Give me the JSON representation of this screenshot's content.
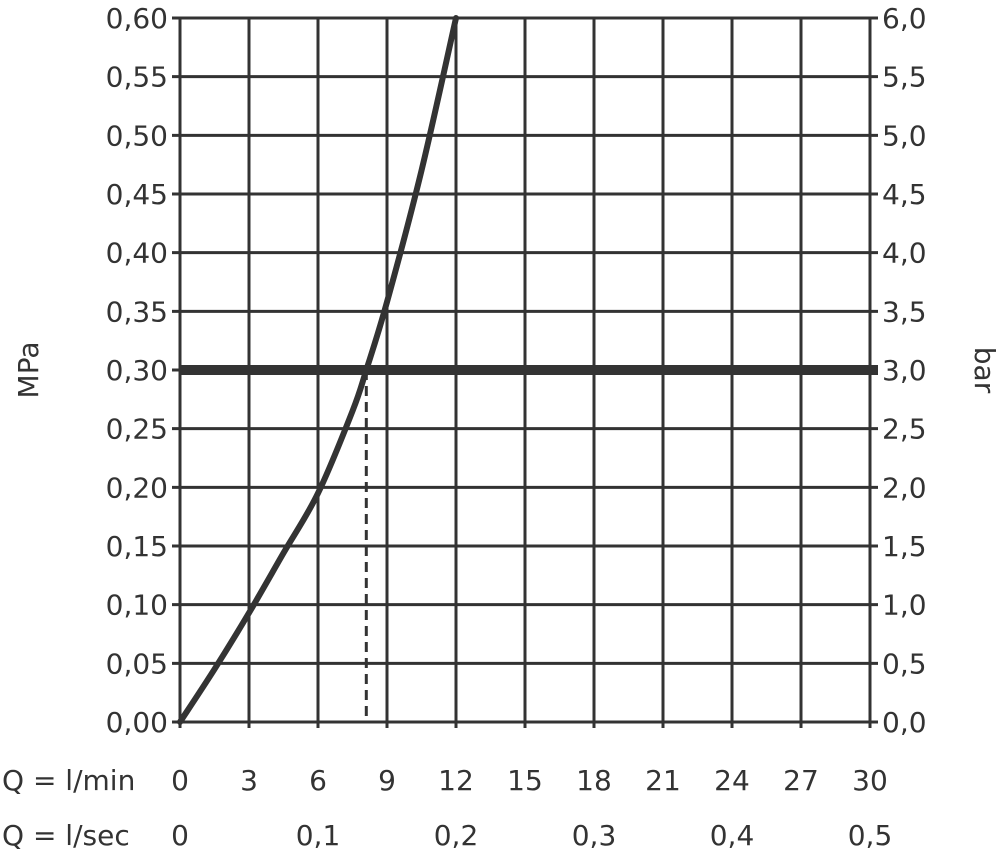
{
  "chart_data": {
    "type": "line",
    "title": "",
    "ylabel_left": "MPa",
    "ylabel_right": "bar",
    "xlabel_primary": "Q = l/min",
    "xlabel_secondary": "Q = l/sec",
    "xlim": [
      0,
      30
    ],
    "ylim": [
      0,
      0.6
    ],
    "grid": true,
    "x_ticks": [
      "0",
      "3",
      "6",
      "9",
      "12",
      "15",
      "18",
      "21",
      "24",
      "27",
      "30"
    ],
    "x_tick_values": [
      0,
      3,
      6,
      9,
      12,
      15,
      18,
      21,
      24,
      27,
      30
    ],
    "x2_ticks": [
      "0",
      "0,1",
      "0,2",
      "0,3",
      "0,4",
      "0,5"
    ],
    "x2_tick_values_lmin": [
      0,
      6,
      12,
      18,
      24,
      30
    ],
    "y_ticks_left": [
      "0,00",
      "0,05",
      "0,10",
      "0,15",
      "0,20",
      "0,25",
      "0,30",
      "0,35",
      "0,40",
      "0,45",
      "0,50",
      "0,55",
      "0,60"
    ],
    "y_ticks_right": [
      "0,0",
      "0,5",
      "1,0",
      "1,5",
      "2,0",
      "2,5",
      "3,0",
      "3,5",
      "4,0",
      "4,5",
      "5,0",
      "5,5",
      "6,0"
    ],
    "y_tick_values": [
      0,
      0.05,
      0.1,
      0.15,
      0.2,
      0.25,
      0.3,
      0.35,
      0.4,
      0.45,
      0.5,
      0.55,
      0.6
    ],
    "series": [
      {
        "x": [
          0,
          1.5,
          3,
          4.5,
          6,
          7.5,
          8.1,
          9,
          10.5,
          12
        ],
        "y": [
          0,
          0.045,
          0.093,
          0.144,
          0.195,
          0.265,
          0.3,
          0.358,
          0.47,
          0.6
        ]
      }
    ],
    "reference_line_y": 0.3,
    "reference_drop_x": 8.1,
    "color": "#333333"
  }
}
